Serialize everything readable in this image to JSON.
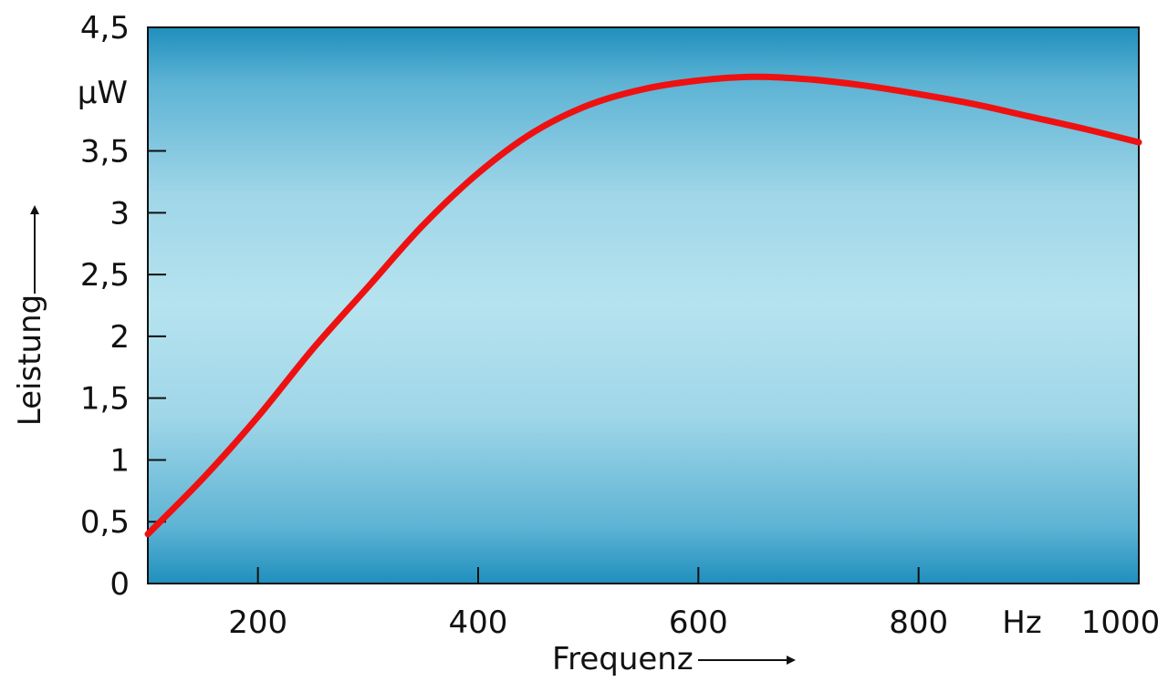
{
  "chart_data": {
    "type": "line",
    "xlabel": "Frequenz",
    "ylabel": "Leistung",
    "x_unit": "Hz",
    "y_unit": "µW",
    "xlim": [
      100,
      1000
    ],
    "ylim": [
      0,
      4.5
    ],
    "x_ticks": [
      {
        "value": 200,
        "label": "200"
      },
      {
        "value": 400,
        "label": "400"
      },
      {
        "value": 600,
        "label": "600"
      },
      {
        "value": 800,
        "label": "800"
      },
      {
        "value": 1000,
        "label": "1000"
      }
    ],
    "y_ticks": [
      {
        "value": 0,
        "label": "0"
      },
      {
        "value": 0.5,
        "label": "0,5"
      },
      {
        "value": 1,
        "label": "1"
      },
      {
        "value": 1.5,
        "label": "1,5"
      },
      {
        "value": 2,
        "label": "2"
      },
      {
        "value": 2.5,
        "label": "2,5"
      },
      {
        "value": 3,
        "label": "3"
      },
      {
        "value": 3.5,
        "label": "3,5"
      },
      {
        "value": 4.5,
        "label": "4,5"
      }
    ],
    "grid": false,
    "series": [
      {
        "color": "#ee1111",
        "x": [
          100,
          150,
          200,
          250,
          300,
          350,
          400,
          450,
          500,
          550,
          600,
          650,
          700,
          750,
          800,
          850,
          900,
          950,
          1000
        ],
        "y": [
          0.4,
          0.85,
          1.35,
          1.9,
          2.4,
          2.9,
          3.32,
          3.65,
          3.87,
          4.0,
          4.07,
          4.1,
          4.08,
          4.03,
          3.96,
          3.88,
          3.78,
          3.68,
          3.57
        ]
      }
    ],
    "colors": {
      "plot_bg_edge": "#1f8fbd",
      "plot_bg_center": "#b6e3ef",
      "line": "#ee1111"
    }
  }
}
